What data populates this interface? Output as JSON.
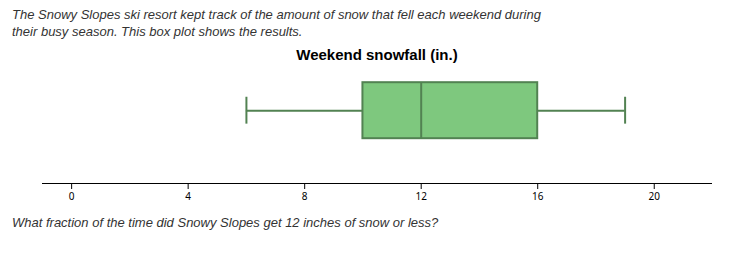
{
  "chart_data": {
    "type": "box",
    "title": "Weekend snowfall (in.)",
    "subtitle": [
      "The Snowy Slopes ski resort kept track of the amount of snow that fell each weekend during",
      "their busy season. This box plot shows the results."
    ],
    "annotations": [
      "What fraction of the time did Snowy Slopes get 12 inches of snow or less?"
    ],
    "min": 6,
    "q1": 10,
    "median": 12,
    "q3": 16,
    "max": 19,
    "color": "#7ec87e",
    "xlim": [
      -1,
      22
    ],
    "xticks": [
      0,
      4,
      8,
      12,
      16,
      20
    ],
    "grid": false,
    "tick_labels": "x"
  }
}
